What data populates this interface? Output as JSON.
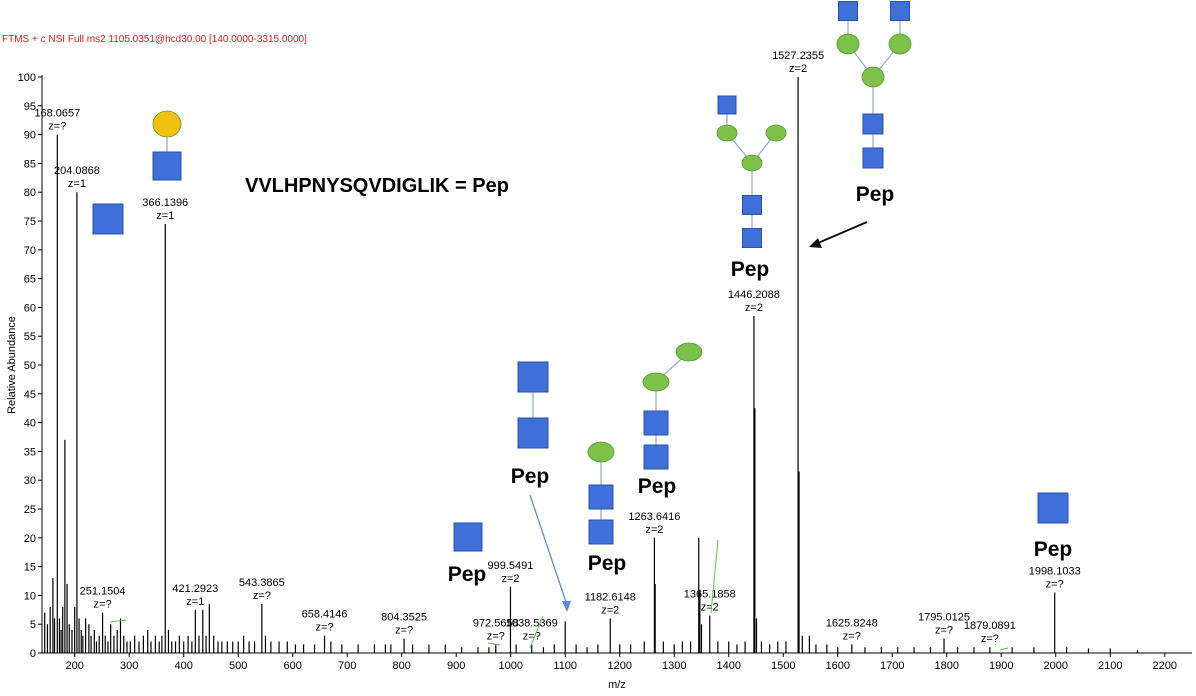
{
  "header": {
    "scan_filter": "FTMS + c NSI Full ms2 1105.0351@hcd30.00 [140.0000-3315.0000]"
  },
  "sequence_label": "VVLHPNYSQVDIGLIK = Pep",
  "pep_label": "Pep",
  "colors": {
    "glcnac": "#3F6FD8",
    "mannose": "#7CC24A",
    "galactose": "#F2C10F",
    "stick": "#000000",
    "arrow_blue": "#5B8BD0",
    "arrow_black": "#111111",
    "header_red": "#cc2222"
  },
  "icons": [
    "glcnac-square-icon",
    "mannose-circle-icon",
    "galactose-circle-icon"
  ],
  "chart_data": {
    "type": "bar",
    "xlabel": "m/z",
    "ylabel": "Relative Abundance",
    "xlim": [
      140,
      2250
    ],
    "ylim": [
      0,
      100
    ],
    "xticks": [
      200,
      300,
      400,
      500,
      600,
      700,
      800,
      900,
      1000,
      1100,
      1200,
      1300,
      1400,
      1500,
      1600,
      1700,
      1800,
      1900,
      2000,
      2100,
      2200
    ],
    "yticks": [
      0,
      5,
      10,
      15,
      20,
      25,
      30,
      35,
      40,
      45,
      50,
      55,
      60,
      65,
      70,
      75,
      80,
      85,
      90,
      95,
      100
    ],
    "peaks": [
      [
        145,
        7
      ],
      [
        150,
        5
      ],
      [
        155,
        8
      ],
      [
        160,
        13
      ],
      [
        163,
        6
      ],
      [
        168.0657,
        90
      ],
      [
        172,
        6
      ],
      [
        175,
        4
      ],
      [
        178,
        8
      ],
      [
        182,
        37
      ],
      [
        186,
        12
      ],
      [
        190,
        5
      ],
      [
        195,
        4
      ],
      [
        200,
        8
      ],
      [
        204.0868,
        80
      ],
      [
        208,
        6
      ],
      [
        212,
        4
      ],
      [
        215,
        3
      ],
      [
        220,
        6
      ],
      [
        226,
        5
      ],
      [
        230,
        3
      ],
      [
        236,
        4
      ],
      [
        240,
        2
      ],
      [
        245,
        3
      ],
      [
        251.1504,
        7
      ],
      [
        256,
        3
      ],
      [
        261,
        2
      ],
      [
        266,
        5
      ],
      [
        272,
        3
      ],
      [
        278,
        4
      ],
      [
        284,
        6
      ],
      [
        290,
        3
      ],
      [
        296,
        2
      ],
      [
        302,
        2
      ],
      [
        310,
        3
      ],
      [
        318,
        2
      ],
      [
        326,
        3
      ],
      [
        334,
        4
      ],
      [
        340,
        2
      ],
      [
        348,
        3
      ],
      [
        355,
        2
      ],
      [
        360,
        3
      ],
      [
        366.1396,
        74.5
      ],
      [
        372,
        4
      ],
      [
        378,
        2
      ],
      [
        385,
        2
      ],
      [
        392,
        3
      ],
      [
        400,
        2
      ],
      [
        408,
        3
      ],
      [
        415,
        2
      ],
      [
        421.2923,
        7.5
      ],
      [
        428,
        3
      ],
      [
        435,
        7.5
      ],
      [
        441,
        3
      ],
      [
        447,
        8.5
      ],
      [
        455,
        3
      ],
      [
        463,
        2
      ],
      [
        470,
        2
      ],
      [
        480,
        2
      ],
      [
        490,
        2
      ],
      [
        500,
        2
      ],
      [
        510,
        3
      ],
      [
        520,
        2
      ],
      [
        530,
        2
      ],
      [
        543.3865,
        8.5
      ],
      [
        550,
        3
      ],
      [
        560,
        2
      ],
      [
        575,
        2
      ],
      [
        590,
        2
      ],
      [
        605,
        1.5
      ],
      [
        620,
        1.5
      ],
      [
        640,
        1.5
      ],
      [
        658.4146,
        3
      ],
      [
        670,
        2
      ],
      [
        690,
        1.5
      ],
      [
        720,
        1.5
      ],
      [
        750,
        1.5
      ],
      [
        770,
        1.5
      ],
      [
        780,
        1.5
      ],
      [
        804.3525,
        2.5
      ],
      [
        820,
        1.5
      ],
      [
        850,
        1.5
      ],
      [
        880,
        1.5
      ],
      [
        910,
        1
      ],
      [
        940,
        1
      ],
      [
        960,
        1
      ],
      [
        972.5658,
        1.5
      ],
      [
        999.5491,
        11.5
      ],
      [
        1010,
        1.5
      ],
      [
        1038.5369,
        1.5
      ],
      [
        1060,
        1
      ],
      [
        1080,
        1.5
      ],
      [
        1100,
        5.5
      ],
      [
        1120,
        1.5
      ],
      [
        1140,
        1
      ],
      [
        1160,
        1.5
      ],
      [
        1182.6148,
        6
      ],
      [
        1200,
        1.5
      ],
      [
        1220,
        1.5
      ],
      [
        1245,
        2
      ],
      [
        1263.6416,
        20
      ],
      [
        1265,
        12
      ],
      [
        1280,
        2
      ],
      [
        1300,
        1.5
      ],
      [
        1315,
        2
      ],
      [
        1330,
        2
      ],
      [
        1345,
        20
      ],
      [
        1347,
        11
      ],
      [
        1350,
        5
      ],
      [
        1365.1858,
        6.5
      ],
      [
        1380,
        2
      ],
      [
        1400,
        2
      ],
      [
        1415,
        1.5
      ],
      [
        1430,
        2
      ],
      [
        1446.2088,
        58.5
      ],
      [
        1448,
        42.5
      ],
      [
        1451,
        6
      ],
      [
        1460,
        2
      ],
      [
        1475,
        1.5
      ],
      [
        1490,
        2
      ],
      [
        1505,
        2
      ],
      [
        1527.2355,
        100
      ],
      [
        1529,
        31.5
      ],
      [
        1535,
        3
      ],
      [
        1548,
        3
      ],
      [
        1560,
        1.5
      ],
      [
        1580,
        1.5
      ],
      [
        1600,
        1
      ],
      [
        1625.8248,
        1.5
      ],
      [
        1650,
        1
      ],
      [
        1680,
        1
      ],
      [
        1710,
        1
      ],
      [
        1740,
        1
      ],
      [
        1770,
        1
      ],
      [
        1795.0125,
        2.5
      ],
      [
        1820,
        1
      ],
      [
        1850,
        1
      ],
      [
        1879.0891,
        1
      ],
      [
        1920,
        1
      ],
      [
        1960,
        1
      ],
      [
        1998.1033,
        10.5
      ],
      [
        2020,
        1
      ],
      [
        2060,
        0.8
      ],
      [
        2100,
        0.8
      ],
      [
        2150,
        0.5
      ]
    ],
    "annotations": [
      {
        "mz": "168.0657",
        "z": "z=?",
        "x": 168.0657,
        "y": 90
      },
      {
        "mz": "204.0868",
        "z": "z=1",
        "x": 204.0868,
        "y": 80
      },
      {
        "mz": "366.1396",
        "z": "z=1",
        "x": 366.1396,
        "y": 74.5
      },
      {
        "mz": "251.1504",
        "z": "z=?",
        "x": 251.1504,
        "y": 7
      },
      {
        "mz": "421.2923",
        "z": "z=1",
        "x": 421.2923,
        "y": 7.5
      },
      {
        "mz": "543.3865",
        "z": "z=?",
        "x": 543.3865,
        "y": 8.5
      },
      {
        "mz": "658.4146",
        "z": "z=?",
        "x": 658.4146,
        "y": 3
      },
      {
        "mz": "804.3525",
        "z": "z=?",
        "x": 804.3525,
        "y": 2.5
      },
      {
        "mz": "972.5658",
        "z": "z=?",
        "x": 972.5658,
        "y": 1.5
      },
      {
        "mz": "999.5491",
        "z": "z=2",
        "x": 999.5491,
        "y": 11.5
      },
      {
        "mz": "1038.5369",
        "z": "z=?",
        "x": 1038.5369,
        "y": 1.5
      },
      {
        "mz": "1182.6148",
        "z": "z=2",
        "x": 1182.6148,
        "y": 6
      },
      {
        "mz": "1263.6416",
        "z": "z=2",
        "x": 1263.6416,
        "y": 20
      },
      {
        "mz": "1365.1858",
        "z": "z=2",
        "x": 1365.1858,
        "y": 6.5
      },
      {
        "mz": "1446.2088",
        "z": "z=2",
        "x": 1446.2088,
        "y": 58.5
      },
      {
        "mz": "1527.2355",
        "z": "z=2",
        "x": 1527.2355,
        "y": 100
      },
      {
        "mz": "1625.8248",
        "z": "z=?",
        "x": 1625.8248,
        "y": 1.5
      },
      {
        "mz": "1795.0125",
        "z": "z=?",
        "x": 1795.0125,
        "y": 2.5
      },
      {
        "mz": "1879.0891",
        "z": "z=?",
        "x": 1879.0891,
        "y": 1
      },
      {
        "mz": "1998.1033",
        "z": "z=?",
        "x": 1998.1033,
        "y": 10.5
      }
    ]
  }
}
